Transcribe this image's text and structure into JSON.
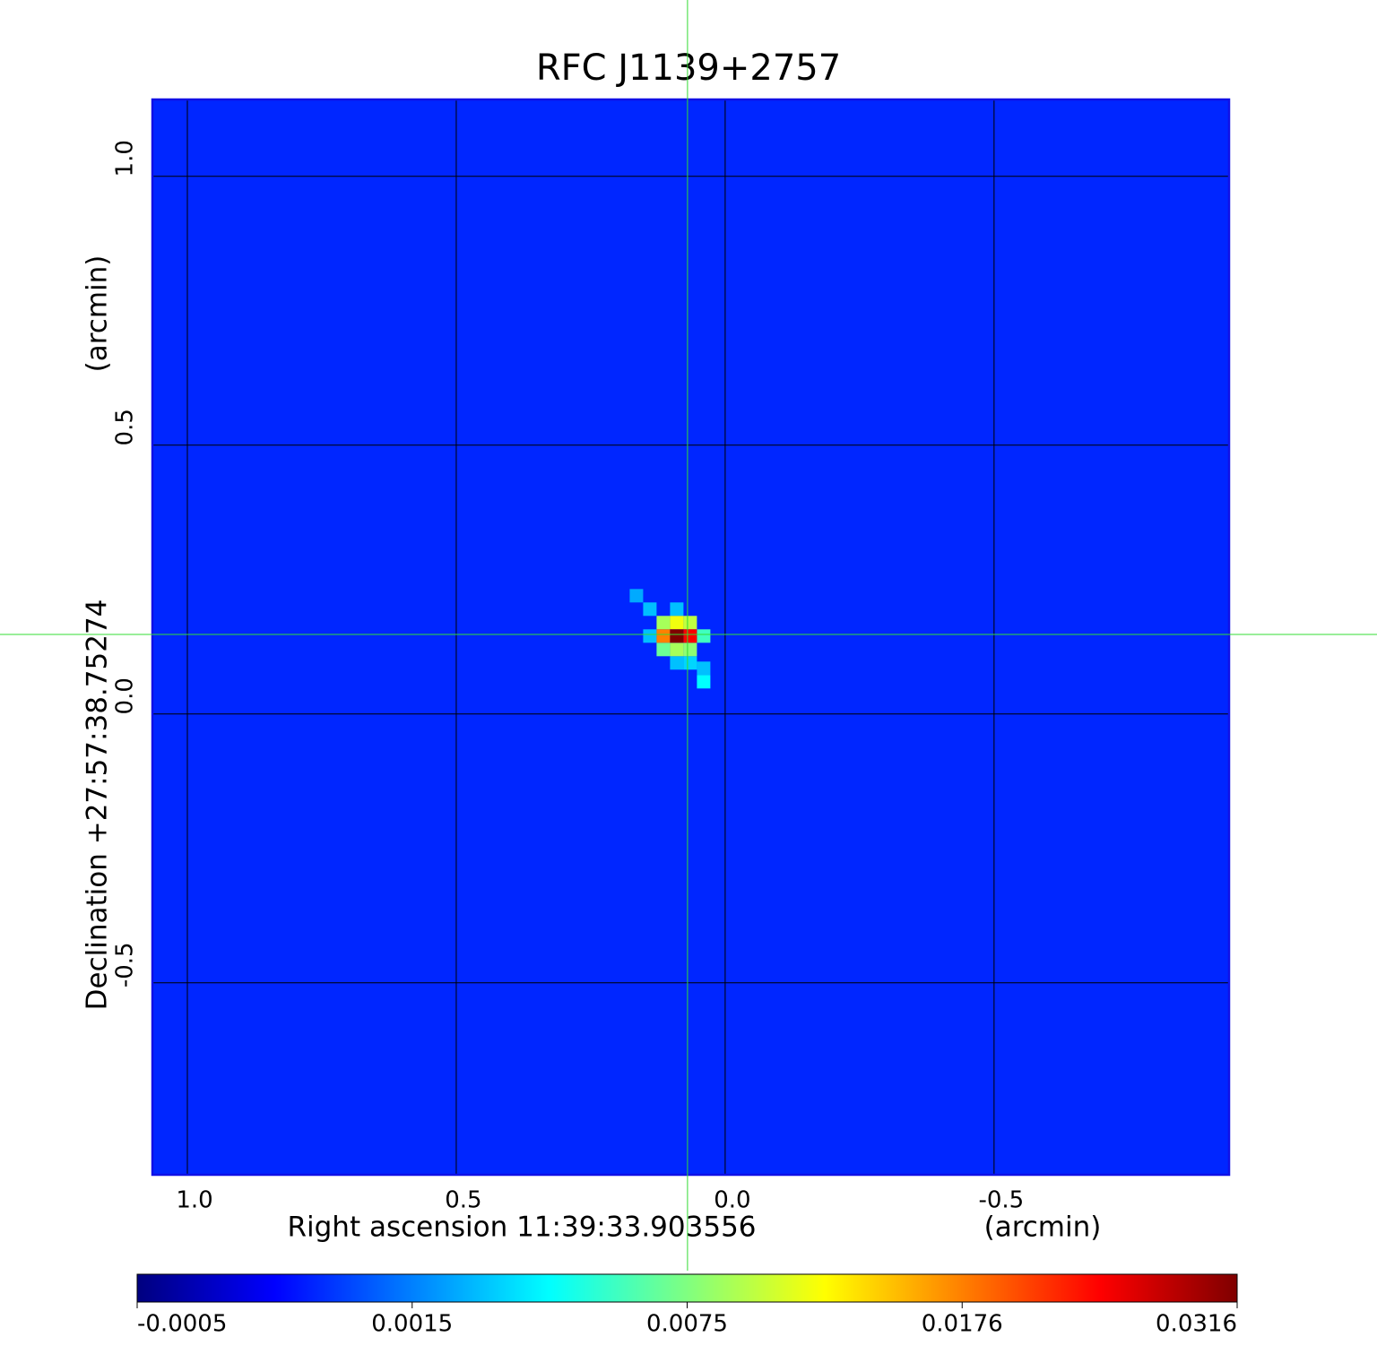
{
  "chart_data": {
    "type": "image",
    "title": "RFC J1139+2757",
    "x_label": "Right ascension  11:39:33.903556",
    "x_unit": "(arcmin)",
    "y_label": "Declination  +27:57:38.75274",
    "y_unit": "(arcmin)",
    "xlim": [
      1.065,
      -0.937
    ],
    "ylim": [
      -0.857,
      1.143
    ],
    "xticks": [
      {
        "value": 1,
        "label": "1.0"
      },
      0.5,
      {
        "value": 0,
        "label": "0.0"
      },
      -0.5
    ],
    "yticks": [
      -0.5,
      {
        "value": 0,
        "label": "0.0"
      },
      0.5,
      {
        "value": 1,
        "label": "1.0"
      }
    ],
    "grid": true,
    "crosshair": {
      "x": 0.07,
      "y": 0.148,
      "color": "#33dd33"
    },
    "pixel_size": 0.025,
    "background_value": 0.0008,
    "cells": [
      {
        "x": 0.165,
        "y": 0.22,
        "value": 0.0025
      },
      {
        "x": 0.14,
        "y": 0.195,
        "value": 0.003
      },
      {
        "x": 0.04,
        "y": 0.085,
        "value": 0.003
      },
      {
        "x": 0.04,
        "y": 0.06,
        "value": 0.0045
      },
      {
        "x": 0.09,
        "y": 0.195,
        "value": 0.003
      },
      {
        "x": 0.09,
        "y": 0.095,
        "value": 0.003
      },
      {
        "x": 0.065,
        "y": 0.095,
        "value": 0.0035
      },
      {
        "x": 0.14,
        "y": 0.145,
        "value": 0.003
      },
      {
        "x": 0.04,
        "y": 0.145,
        "value": 0.006
      },
      {
        "x": 0.115,
        "y": 0.12,
        "value": 0.007
      },
      {
        "x": 0.09,
        "y": 0.12,
        "value": 0.009
      },
      {
        "x": 0.065,
        "y": 0.12,
        "value": 0.008
      },
      {
        "x": 0.115,
        "y": 0.17,
        "value": 0.009
      },
      {
        "x": 0.09,
        "y": 0.17,
        "value": 0.012
      },
      {
        "x": 0.065,
        "y": 0.17,
        "value": 0.01
      },
      {
        "x": 0.115,
        "y": 0.145,
        "value": 0.0176
      },
      {
        "x": 0.065,
        "y": 0.145,
        "value": 0.025
      },
      {
        "x": 0.09,
        "y": 0.145,
        "value": 0.0316
      }
    ],
    "colorbar": {
      "ticks": [
        -0.0005,
        0.0015,
        0.0075,
        0.0176,
        0.0316
      ],
      "colormap": [
        "#00007f",
        "#0000ff",
        "#0080ff",
        "#00ffff",
        "#80ff80",
        "#ffff00",
        "#ff8000",
        "#ff0000",
        "#7f0000"
      ]
    },
    "title_color": "#1414d2",
    "border_color": "#1010e6"
  }
}
